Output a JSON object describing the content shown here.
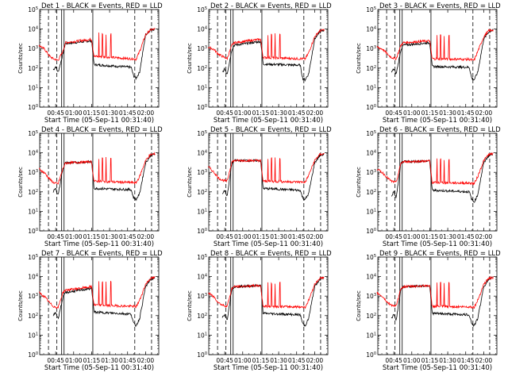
{
  "figure": {
    "title_suffix": "BLACK = Events, RED = LLD",
    "ylabel": "Counts/sec",
    "xlabel": "Start Time (05-Sep-11 00:31:40)",
    "colors": {
      "events": "#000000",
      "lld": "#ff0000",
      "markers": "#000000"
    }
  },
  "chart_data": [
    {
      "panel": "Det 1",
      "title": "Det 1",
      "type": "line",
      "y_scale": "log",
      "ylim": [
        1,
        100000
      ],
      "x_range": [
        "00:31:40",
        "02:11:00"
      ],
      "x_ticks": [
        "00:45",
        "01:00",
        "01:15",
        "01:30",
        "01:45",
        "02:00"
      ],
      "y_ticks": [
        "10^0",
        "10^1",
        "10^2",
        "10^3",
        "10^4",
        "10^5"
      ],
      "dashed_markers": [
        "00:39",
        "00:46",
        "01:51",
        "02:05"
      ],
      "solid_markers": [
        "00:50",
        "00:52",
        "01:16"
      ],
      "series": [
        {
          "name": "BLACK = Events",
          "color": "black",
          "x": [
            "00:43",
            "00:45",
            "00:47",
            "00:51",
            "00:53",
            "01:15",
            "01:17",
            "01:48",
            "01:50",
            "01:52",
            "01:55",
            "02:00",
            "02:04",
            "02:08"
          ],
          "y": [
            80,
            120,
            60,
            500,
            1800,
            2500,
            150,
            110,
            40,
            30,
            60,
            5000,
            9000,
            10000
          ]
        },
        {
          "name": "RED = LLD",
          "color": "red",
          "x": [
            "00:31",
            "00:36",
            "00:40",
            "00:43",
            "00:47",
            "00:51",
            "00:53",
            "01:15",
            "01:17",
            "01:48",
            "01:50",
            "01:52",
            "01:55",
            "02:00",
            "02:04",
            "02:08"
          ],
          "y": [
            1500,
            900,
            400,
            300,
            250,
            700,
            2000,
            3000,
            400,
            300,
            300,
            280,
            700,
            5000,
            9000,
            10000
          ]
        }
      ]
    },
    {
      "panel": "Det 2",
      "title": "Det 2",
      "type": "line",
      "y_scale": "log",
      "ylim": [
        1,
        100000
      ],
      "x_range": [
        "00:31:40",
        "02:11:00"
      ],
      "x_ticks": [
        "00:45",
        "01:00",
        "01:15",
        "01:30",
        "01:45",
        "02:00"
      ],
      "y_ticks": [
        "10^0",
        "10^1",
        "10^2",
        "10^3",
        "10^4",
        "10^5"
      ],
      "dashed_markers": [
        "00:39",
        "00:46",
        "01:51",
        "02:05"
      ],
      "solid_markers": [
        "00:50",
        "00:52",
        "01:16"
      ],
      "series": [
        {
          "name": "BLACK = Events",
          "color": "black",
          "x": [
            "00:43",
            "00:45",
            "00:47",
            "00:51",
            "00:53",
            "01:15",
            "01:17",
            "01:48",
            "01:50",
            "01:52",
            "01:55",
            "02:00",
            "02:04",
            "02:08"
          ],
          "y": [
            60,
            90,
            50,
            900,
            1500,
            2300,
            160,
            140,
            30,
            25,
            50,
            3000,
            7000,
            9000
          ]
        },
        {
          "name": "RED = LLD",
          "color": "red",
          "x": [
            "00:31",
            "00:36",
            "00:40",
            "00:43",
            "00:47",
            "00:51",
            "00:53",
            "01:15",
            "01:17",
            "01:48",
            "01:50",
            "01:52",
            "01:55",
            "02:00",
            "02:04",
            "02:08"
          ],
          "y": [
            1200,
            900,
            500,
            400,
            300,
            1500,
            2000,
            3000,
            350,
            300,
            300,
            290,
            600,
            4000,
            8000,
            9000
          ]
        }
      ]
    },
    {
      "panel": "Det 3",
      "title": "Det 3",
      "type": "line",
      "y_scale": "log",
      "ylim": [
        1,
        100000
      ],
      "x_range": [
        "00:31:40",
        "02:11:00"
      ],
      "x_ticks": [
        "00:45",
        "01:00",
        "01:15",
        "01:30",
        "01:45",
        "02:00"
      ],
      "y_ticks": [
        "10^0",
        "10^1",
        "10^2",
        "10^3",
        "10^4",
        "10^5"
      ],
      "dashed_markers": [
        "00:39",
        "00:46",
        "01:51",
        "02:05"
      ],
      "solid_markers": [
        "00:50",
        "00:52",
        "01:16"
      ],
      "series": [
        {
          "name": "BLACK = Events",
          "color": "black",
          "x": [
            "00:43",
            "00:45",
            "00:47",
            "00:51",
            "00:53",
            "01:15",
            "01:17",
            "01:48",
            "01:50",
            "01:52",
            "01:55",
            "02:00",
            "02:04",
            "02:08"
          ],
          "y": [
            60,
            90,
            50,
            900,
            1500,
            2000,
            120,
            110,
            30,
            25,
            60,
            3000,
            7000,
            9000
          ]
        },
        {
          "name": "RED = LLD",
          "color": "red",
          "x": [
            "00:31",
            "00:36",
            "00:40",
            "00:43",
            "00:47",
            "00:51",
            "00:53",
            "01:15",
            "01:17",
            "01:48",
            "01:50",
            "01:52",
            "01:55",
            "02:00",
            "02:04",
            "02:08"
          ],
          "y": [
            1200,
            900,
            500,
            350,
            300,
            1500,
            2000,
            2500,
            300,
            280,
            260,
            250,
            700,
            4000,
            8000,
            9000
          ]
        }
      ]
    },
    {
      "panel": "Det 4",
      "title": "Det 4",
      "type": "line",
      "y_scale": "log",
      "ylim": [
        1,
        100000
      ],
      "x_range": [
        "00:31:40",
        "02:11:00"
      ],
      "x_ticks": [
        "00:45",
        "01:00",
        "01:15",
        "01:30",
        "01:45",
        "02:00"
      ],
      "y_ticks": [
        "10^0",
        "10^1",
        "10^2",
        "10^3",
        "10^4",
        "10^5"
      ],
      "dashed_markers": [
        "00:39",
        "00:46",
        "01:51",
        "02:05"
      ],
      "solid_markers": [
        "00:50",
        "00:52",
        "01:16"
      ],
      "series": [
        {
          "name": "BLACK = Events",
          "color": "black",
          "x": [
            "00:43",
            "00:45",
            "00:47",
            "00:51",
            "00:53",
            "01:15",
            "01:17",
            "01:48",
            "01:50",
            "01:52",
            "01:55",
            "02:00",
            "02:04",
            "02:08"
          ],
          "y": [
            100,
            150,
            70,
            1500,
            3000,
            3500,
            150,
            130,
            50,
            40,
            80,
            3000,
            7000,
            9000
          ]
        },
        {
          "name": "RED = LLD",
          "color": "red",
          "x": [
            "00:31",
            "00:36",
            "00:40",
            "00:43",
            "00:47",
            "00:51",
            "00:53",
            "01:15",
            "01:17",
            "01:48",
            "01:50",
            "01:52",
            "01:55",
            "02:00",
            "02:04",
            "02:08"
          ],
          "y": [
            1500,
            900,
            450,
            300,
            250,
            1500,
            3000,
            3500,
            350,
            300,
            300,
            280,
            600,
            4000,
            8000,
            9000
          ]
        }
      ]
    },
    {
      "panel": "Det 5",
      "title": "Det 5",
      "type": "line",
      "y_scale": "log",
      "ylim": [
        1,
        100000
      ],
      "x_range": [
        "00:31:40",
        "02:11:00"
      ],
      "x_ticks": [
        "00:45",
        "01:00",
        "01:15",
        "01:30",
        "01:45",
        "02:00"
      ],
      "y_ticks": [
        "10^0",
        "10^1",
        "10^2",
        "10^3",
        "10^4",
        "10^5"
      ],
      "dashed_markers": [
        "00:39",
        "00:46",
        "01:51",
        "02:05"
      ],
      "solid_markers": [
        "00:50",
        "00:52",
        "01:16"
      ],
      "series": [
        {
          "name": "BLACK = Events",
          "color": "black",
          "x": [
            "00:43",
            "00:45",
            "00:47",
            "00:51",
            "00:53",
            "01:15",
            "01:17",
            "01:48",
            "01:50",
            "01:52",
            "01:55",
            "02:00",
            "02:04",
            "02:08"
          ],
          "y": [
            80,
            120,
            60,
            3000,
            4000,
            4000,
            150,
            120,
            50,
            40,
            80,
            3000,
            7000,
            9000
          ]
        },
        {
          "name": "RED = LLD",
          "color": "red",
          "x": [
            "00:31",
            "00:36",
            "00:40",
            "00:43",
            "00:47",
            "00:51",
            "00:53",
            "01:15",
            "01:17",
            "01:48",
            "01:50",
            "01:52",
            "01:55",
            "02:00",
            "02:04",
            "02:08"
          ],
          "y": [
            2000,
            1000,
            500,
            400,
            350,
            3500,
            4000,
            4000,
            350,
            320,
            320,
            300,
            700,
            4000,
            8000,
            9000
          ]
        }
      ]
    },
    {
      "panel": "Det 6",
      "title": "Det 6",
      "type": "line",
      "y_scale": "log",
      "ylim": [
        1,
        100000
      ],
      "x_range": [
        "00:31:40",
        "02:11:00"
      ],
      "x_ticks": [
        "00:45",
        "01:00",
        "01:15",
        "01:30",
        "01:45",
        "02:00"
      ],
      "y_ticks": [
        "10^0",
        "10^1",
        "10^2",
        "10^3",
        "10^4",
        "10^5"
      ],
      "dashed_markers": [
        "00:39",
        "00:46",
        "01:51",
        "02:05"
      ],
      "solid_markers": [
        "00:50",
        "00:52",
        "01:16"
      ],
      "series": [
        {
          "name": "BLACK = Events",
          "color": "black",
          "x": [
            "00:43",
            "00:45",
            "00:47",
            "00:51",
            "00:53",
            "01:15",
            "01:17",
            "01:48",
            "01:50",
            "01:52",
            "01:55",
            "02:00",
            "02:04",
            "02:08"
          ],
          "y": [
            60,
            100,
            50,
            3000,
            3500,
            3800,
            120,
            100,
            40,
            30,
            70,
            3000,
            7000,
            9000
          ]
        },
        {
          "name": "RED = LLD",
          "color": "red",
          "x": [
            "00:31",
            "00:36",
            "00:40",
            "00:43",
            "00:47",
            "00:51",
            "00:53",
            "01:15",
            "01:17",
            "01:48",
            "01:50",
            "01:52",
            "01:55",
            "02:00",
            "02:04",
            "02:08"
          ],
          "y": [
            1500,
            900,
            500,
            350,
            300,
            3000,
            3500,
            3800,
            300,
            280,
            280,
            260,
            600,
            4000,
            8000,
            9000
          ]
        }
      ]
    },
    {
      "panel": "Det 7",
      "title": "Det 7",
      "type": "line",
      "y_scale": "log",
      "ylim": [
        1,
        100000
      ],
      "x_range": [
        "00:31:40",
        "02:11:00"
      ],
      "x_ticks": [
        "00:45",
        "01:00",
        "01:15",
        "01:30",
        "01:45",
        "02:00"
      ],
      "y_ticks": [
        "10^0",
        "10^1",
        "10^2",
        "10^3",
        "10^4",
        "10^5"
      ],
      "dashed_markers": [
        "00:39",
        "00:46",
        "01:51",
        "02:05"
      ],
      "solid_markers": [
        "00:50",
        "00:52",
        "01:16"
      ],
      "series": [
        {
          "name": "BLACK = Events",
          "color": "black",
          "x": [
            "00:43",
            "00:45",
            "00:47",
            "00:51",
            "00:53",
            "01:15",
            "01:17",
            "01:48",
            "01:50",
            "01:52",
            "01:55",
            "02:00",
            "02:04",
            "02:08"
          ],
          "y": [
            100,
            150,
            70,
            800,
            1500,
            2500,
            150,
            120,
            40,
            30,
            70,
            3000,
            7000,
            9000
          ]
        },
        {
          "name": "RED = LLD",
          "color": "red",
          "x": [
            "00:31",
            "00:36",
            "00:40",
            "00:43",
            "00:47",
            "00:51",
            "00:53",
            "01:15",
            "01:17",
            "01:48",
            "01:50",
            "01:52",
            "01:55",
            "02:00",
            "02:04",
            "02:08"
          ],
          "y": [
            1500,
            900,
            450,
            300,
            250,
            1500,
            2000,
            3000,
            350,
            300,
            300,
            280,
            600,
            4000,
            8000,
            9000
          ]
        }
      ]
    },
    {
      "panel": "Det 8",
      "title": "Det 8",
      "type": "line",
      "y_scale": "log",
      "ylim": [
        1,
        100000
      ],
      "x_range": [
        "00:31:40",
        "02:11:00"
      ],
      "x_ticks": [
        "00:45",
        "01:00",
        "01:15",
        "01:30",
        "01:45",
        "02:00"
      ],
      "y_ticks": [
        "10^0",
        "10^1",
        "10^2",
        "10^3",
        "10^4",
        "10^5"
      ],
      "dashed_markers": [
        "00:39",
        "00:46",
        "01:51",
        "02:05"
      ],
      "solid_markers": [
        "00:50",
        "00:52",
        "01:16"
      ],
      "series": [
        {
          "name": "BLACK = Events",
          "color": "black",
          "x": [
            "00:43",
            "00:45",
            "00:47",
            "00:51",
            "00:53",
            "01:15",
            "01:17",
            "01:48",
            "01:50",
            "01:52",
            "01:55",
            "02:00",
            "02:04",
            "02:08"
          ],
          "y": [
            80,
            120,
            60,
            2500,
            3000,
            3500,
            130,
            110,
            40,
            30,
            70,
            3000,
            7000,
            9000
          ]
        },
        {
          "name": "RED = LLD",
          "color": "red",
          "x": [
            "00:31",
            "00:36",
            "00:40",
            "00:43",
            "00:47",
            "00:51",
            "00:53",
            "01:15",
            "01:17",
            "01:48",
            "01:50",
            "01:52",
            "01:55",
            "02:00",
            "02:04",
            "02:08"
          ],
          "y": [
            1500,
            900,
            450,
            350,
            300,
            2500,
            3000,
            3500,
            300,
            280,
            280,
            260,
            600,
            4000,
            8000,
            9000
          ]
        }
      ]
    },
    {
      "panel": "Det 9",
      "title": "Det 9",
      "type": "line",
      "y_scale": "log",
      "ylim": [
        1,
        100000
      ],
      "x_range": [
        "00:31:40",
        "02:11:00"
      ],
      "x_ticks": [
        "00:45",
        "01:00",
        "01:15",
        "01:30",
        "01:45",
        "02:00"
      ],
      "y_ticks": [
        "10^0",
        "10^1",
        "10^2",
        "10^3",
        "10^4",
        "10^5"
      ],
      "dashed_markers": [
        "00:39",
        "00:46",
        "01:51",
        "02:05"
      ],
      "solid_markers": [
        "00:50",
        "00:52",
        "01:16"
      ],
      "series": [
        {
          "name": "BLACK = Events",
          "color": "black",
          "x": [
            "00:43",
            "00:45",
            "00:47",
            "00:51",
            "00:53",
            "01:15",
            "01:17",
            "01:48",
            "01:50",
            "01:52",
            "01:55",
            "02:00",
            "02:04",
            "02:08"
          ],
          "y": [
            70,
            110,
            60,
            2500,
            3000,
            3500,
            130,
            110,
            40,
            30,
            70,
            3000,
            7000,
            9000
          ]
        },
        {
          "name": "RED = LLD",
          "color": "red",
          "x": [
            "00:31",
            "00:36",
            "00:40",
            "00:43",
            "00:47",
            "00:51",
            "00:53",
            "01:15",
            "01:17",
            "01:48",
            "01:50",
            "01:52",
            "01:55",
            "02:00",
            "02:04",
            "02:08"
          ],
          "y": [
            1500,
            900,
            450,
            350,
            300,
            2500,
            3000,
            3500,
            300,
            280,
            280,
            260,
            600,
            4000,
            8000,
            9000
          ]
        }
      ]
    }
  ]
}
